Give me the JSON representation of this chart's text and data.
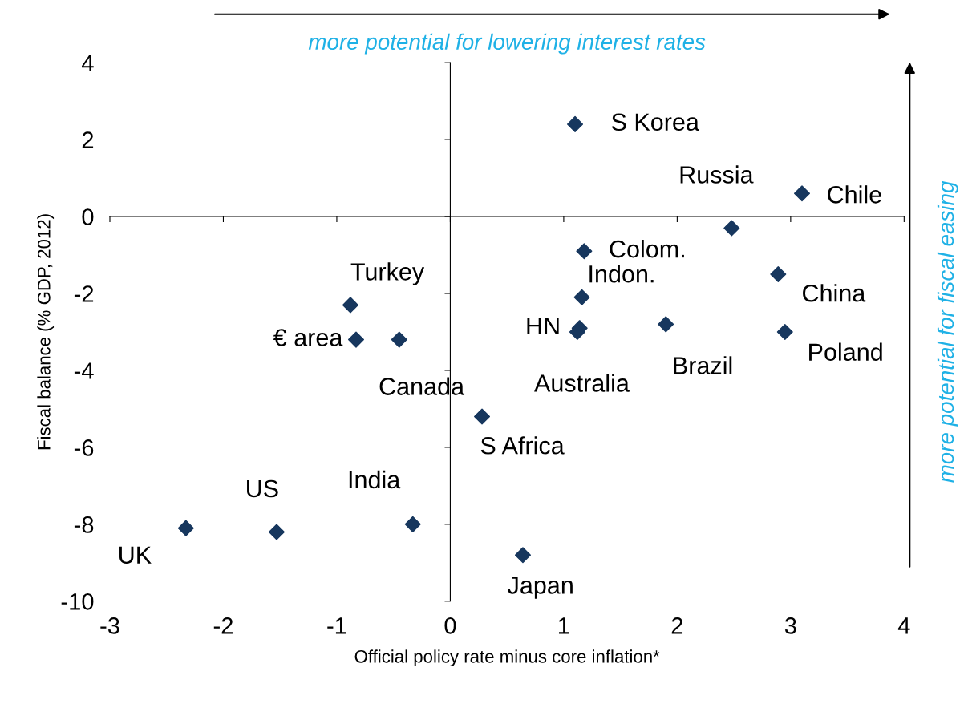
{
  "chart_data": {
    "type": "scatter",
    "xlabel": "Official policy rate minus core inflation*",
    "ylabel": "Fiscal balance (% GDP, 2012)",
    "x": [
      1.1,
      3.1,
      2.48,
      1.18,
      2.89,
      1.16,
      -0.88,
      1.14,
      1.12,
      1.9,
      2.95,
      -0.83,
      -0.45,
      0.28,
      -0.33,
      -1.53,
      -2.33,
      0.64
    ],
    "values": [
      2.4,
      0.6,
      -0.3,
      -0.9,
      -1.5,
      -2.1,
      -2.3,
      -2.9,
      -3.0,
      -2.8,
      -3.0,
      -3.2,
      -3.2,
      -5.2,
      -8.0,
      -8.2,
      -8.1,
      -8.8
    ],
    "color": "#17375e",
    "marker": "diamond",
    "xlim": [
      -3,
      4
    ],
    "xticks": [
      -3,
      -2,
      -1,
      0,
      1,
      2,
      3,
      4
    ],
    "ylim": [
      -10,
      4
    ],
    "yticks": [
      -10,
      -8,
      -6,
      -4,
      -2,
      0,
      2,
      4
    ],
    "annotations": [
      {
        "text": "S Korea",
        "x": 1.1,
        "y": 2.4
      },
      {
        "text": "Chile",
        "x": 3.1,
        "y": 0.6
      },
      {
        "text": "Russia",
        "x": 2.48,
        "y": -0.3
      },
      {
        "text": "Colom.",
        "x": 1.18,
        "y": -0.9
      },
      {
        "text": "China",
        "x": 2.89,
        "y": -1.5
      },
      {
        "text": "Indon.",
        "x": 1.16,
        "y": -2.1
      },
      {
        "text": "Turkey",
        "x": -0.88,
        "y": -2.3
      },
      {
        "text": "HN",
        "x": 1.14,
        "y": -2.9
      },
      {
        "text": "Australia",
        "x": 1.12,
        "y": -3.0
      },
      {
        "text": "Brazil",
        "x": 1.9,
        "y": -2.8
      },
      {
        "text": "Poland",
        "x": 2.95,
        "y": -3.0
      },
      {
        "text": "€ area",
        "x": -0.83,
        "y": -3.2
      },
      {
        "text": "Canada",
        "x": -0.45,
        "y": -3.2
      },
      {
        "text": "S Africa",
        "x": 0.28,
        "y": -5.2
      },
      {
        "text": "India",
        "x": -0.33,
        "y": -8.0
      },
      {
        "text": "US",
        "x": -1.53,
        "y": -8.2
      },
      {
        "text": "UK",
        "x": -2.33,
        "y": -8.1
      },
      {
        "text": "Japan",
        "x": 0.64,
        "y": -8.8
      },
      "more potential for lowering interest rates",
      "more potential for fiscal easing"
    ]
  }
}
